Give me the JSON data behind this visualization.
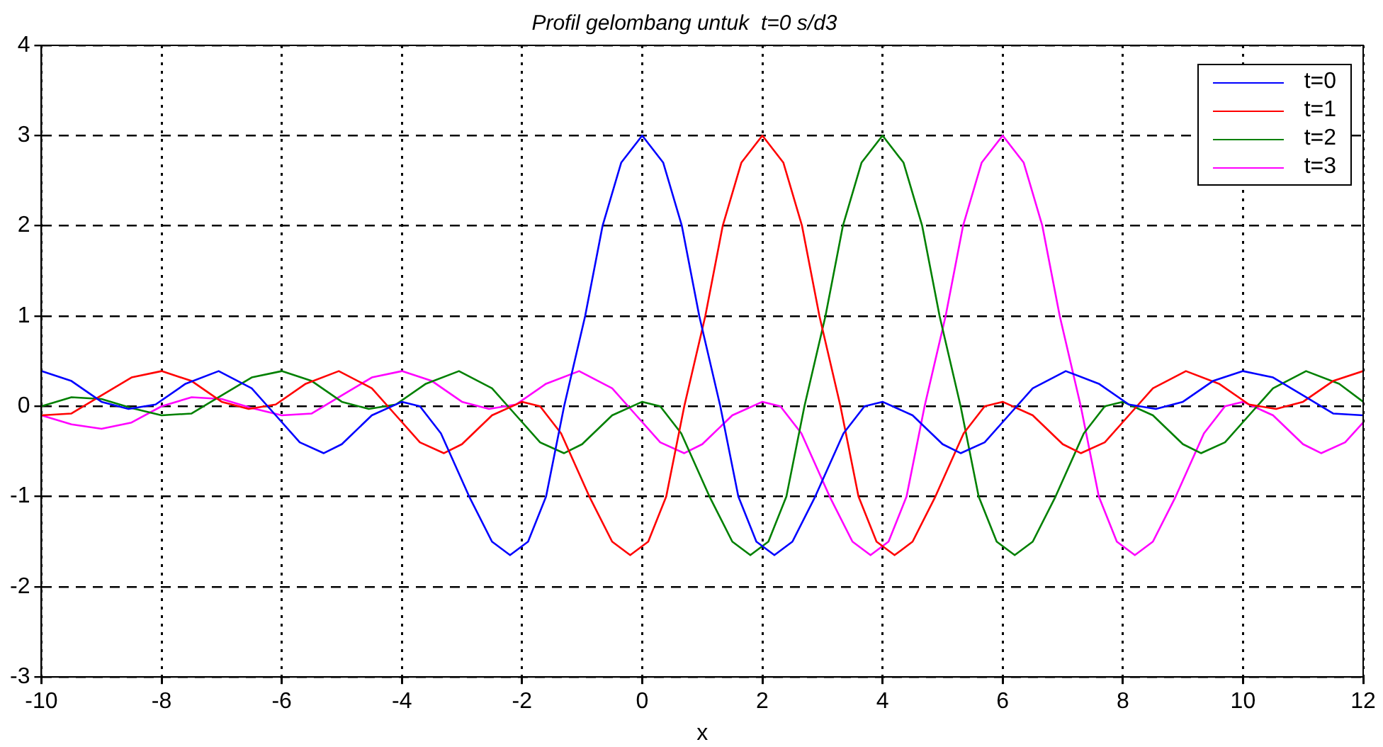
{
  "chart_data": {
    "type": "line",
    "title": "Profil gelombang untuk  t=0 s/d3",
    "xlabel": "x",
    "xlim": [
      -10,
      12
    ],
    "xticks": [
      -10,
      -8,
      -6,
      -4,
      -2,
      0,
      2,
      4,
      6,
      8,
      10,
      12
    ],
    "ylim": [
      -3,
      4
    ],
    "yticks": [
      -3,
      -2,
      -1,
      0,
      1,
      2,
      3,
      4
    ],
    "grid": true,
    "legend": "top right",
    "line_style": "solid",
    "marker": "none",
    "series": [
      {
        "name": "t=0",
        "color": "#0000ff",
        "x": [
          -10,
          -9.5,
          -9,
          -8.55,
          -8.1,
          -7.6,
          -7.05,
          -6.5,
          -6.1,
          -5.7,
          -5.3,
          -5,
          -4.5,
          -4,
          -3.7,
          -3.35,
          -2.88,
          -2.5,
          -2.2,
          -1.9,
          -1.6,
          -1.3,
          -0.95,
          -0.66,
          -0.35,
          0,
          0.35,
          0.66,
          0.95,
          1.3,
          1.6,
          1.9,
          2.2,
          2.5,
          2.88,
          3.35,
          3.7,
          4,
          4.5,
          5,
          5.3,
          5.7,
          6.1,
          6.5,
          7.05,
          7.6,
          8.1,
          8.55,
          9,
          9.5,
          10,
          10.5,
          11,
          11.5,
          12
        ],
        "values": [
          0.39,
          0.28,
          0.05,
          -0.03,
          0.02,
          0.25,
          0.39,
          0.2,
          -0.1,
          -0.4,
          -0.52,
          -0.42,
          -0.1,
          0.05,
          0,
          -0.3,
          -1,
          -1.5,
          -1.65,
          -1.5,
          -1,
          0,
          1,
          2,
          2.7,
          3,
          2.7,
          2,
          1,
          0,
          -1,
          -1.5,
          -1.65,
          -1.5,
          -1,
          -0.3,
          0,
          0.05,
          -0.1,
          -0.42,
          -0.52,
          -0.4,
          -0.1,
          0.2,
          0.39,
          0.25,
          0.02,
          -0.03,
          0.05,
          0.28,
          0.39,
          0.32,
          0.12,
          -0.08,
          -0.1
        ]
      },
      {
        "name": "t=1",
        "color": "#ff0000",
        "x": [
          -10,
          -9.5,
          -9,
          -8.5,
          -8,
          -7.5,
          -7,
          -6.55,
          -6.1,
          -5.6,
          -5.05,
          -4.5,
          -4.1,
          -3.7,
          -3.3,
          -3,
          -2.5,
          -2,
          -1.7,
          -1.35,
          -0.88,
          -0.5,
          -0.2,
          0.1,
          0.4,
          0.7,
          1.05,
          1.34,
          1.65,
          2,
          2.35,
          2.66,
          2.95,
          3.3,
          3.6,
          3.9,
          4.2,
          4.5,
          4.88,
          5.35,
          5.7,
          6,
          6.5,
          7,
          7.3,
          7.7,
          8.1,
          8.5,
          9.05,
          9.6,
          10.1,
          10.55,
          11,
          11.5,
          12
        ],
        "values": [
          -0.1,
          -0.08,
          0.12,
          0.32,
          0.39,
          0.28,
          0.05,
          -0.03,
          0.02,
          0.25,
          0.39,
          0.2,
          -0.1,
          -0.4,
          -0.52,
          -0.42,
          -0.1,
          0.05,
          0,
          -0.3,
          -1,
          -1.5,
          -1.65,
          -1.5,
          -1,
          0,
          1,
          2,
          2.7,
          3,
          2.7,
          2,
          1,
          0,
          -1,
          -1.5,
          -1.65,
          -1.5,
          -1,
          -0.3,
          0,
          0.05,
          -0.1,
          -0.42,
          -0.52,
          -0.4,
          -0.1,
          0.2,
          0.39,
          0.25,
          0.02,
          -0.03,
          0.05,
          0.28,
          0.39
        ]
      },
      {
        "name": "t=2",
        "color": "#008000",
        "x": [
          -10,
          -9.5,
          -9,
          -8.5,
          -8,
          -7.5,
          -7,
          -6.5,
          -6,
          -5.5,
          -5,
          -4.55,
          -4.1,
          -3.6,
          -3.05,
          -2.5,
          -2.1,
          -1.7,
          -1.3,
          -1,
          -0.5,
          0,
          0.3,
          0.65,
          1.12,
          1.5,
          1.8,
          2.1,
          2.4,
          2.7,
          3.05,
          3.34,
          3.65,
          4,
          4.35,
          4.66,
          4.95,
          5.3,
          5.6,
          5.9,
          6.2,
          6.5,
          6.88,
          7.35,
          7.7,
          8,
          8.5,
          9,
          9.3,
          9.7,
          10.1,
          10.5,
          11.05,
          11.6,
          12
        ],
        "values": [
          0,
          0.1,
          0.08,
          -0.02,
          -0.1,
          -0.08,
          0.12,
          0.32,
          0.39,
          0.28,
          0.05,
          -0.03,
          0.02,
          0.25,
          0.39,
          0.2,
          -0.1,
          -0.4,
          -0.52,
          -0.42,
          -0.1,
          0.05,
          0,
          -0.3,
          -1,
          -1.5,
          -1.65,
          -1.5,
          -1,
          0,
          1,
          2,
          2.7,
          3,
          2.7,
          2,
          1,
          0,
          -1,
          -1.5,
          -1.65,
          -1.5,
          -1,
          -0.3,
          0,
          0.05,
          -0.1,
          -0.42,
          -0.52,
          -0.4,
          -0.1,
          0.2,
          0.39,
          0.25,
          0.05
        ]
      },
      {
        "name": "t=3",
        "color": "#ff00ff",
        "x": [
          -10,
          -9.5,
          -9,
          -8.5,
          -8,
          -7.5,
          -7,
          -6.5,
          -6,
          -5.5,
          -5,
          -4.5,
          -4,
          -3.5,
          -3,
          -2.55,
          -2.1,
          -1.6,
          -1.05,
          -0.5,
          -0.1,
          0.3,
          0.7,
          1,
          1.5,
          2,
          2.3,
          2.65,
          3.12,
          3.5,
          3.8,
          4.1,
          4.4,
          4.7,
          5.05,
          5.34,
          5.65,
          6,
          6.35,
          6.66,
          6.95,
          7.3,
          7.6,
          7.9,
          8.2,
          8.5,
          8.88,
          9.35,
          9.7,
          10,
          10.5,
          11,
          11.3,
          11.7,
          12
        ],
        "values": [
          -0.1,
          -0.2,
          -0.25,
          -0.18,
          0,
          0.1,
          0.08,
          -0.02,
          -0.1,
          -0.08,
          0.12,
          0.32,
          0.39,
          0.28,
          0.05,
          -0.03,
          0.02,
          0.25,
          0.39,
          0.2,
          -0.1,
          -0.4,
          -0.52,
          -0.42,
          -0.1,
          0.05,
          0,
          -0.3,
          -1,
          -1.5,
          -1.65,
          -1.5,
          -1,
          0,
          1,
          2,
          2.7,
          3,
          2.7,
          2,
          1,
          0,
          -1,
          -1.5,
          -1.65,
          -1.5,
          -1,
          -0.3,
          0,
          0.05,
          -0.1,
          -0.42,
          -0.52,
          -0.4,
          -0.18
        ]
      }
    ]
  }
}
